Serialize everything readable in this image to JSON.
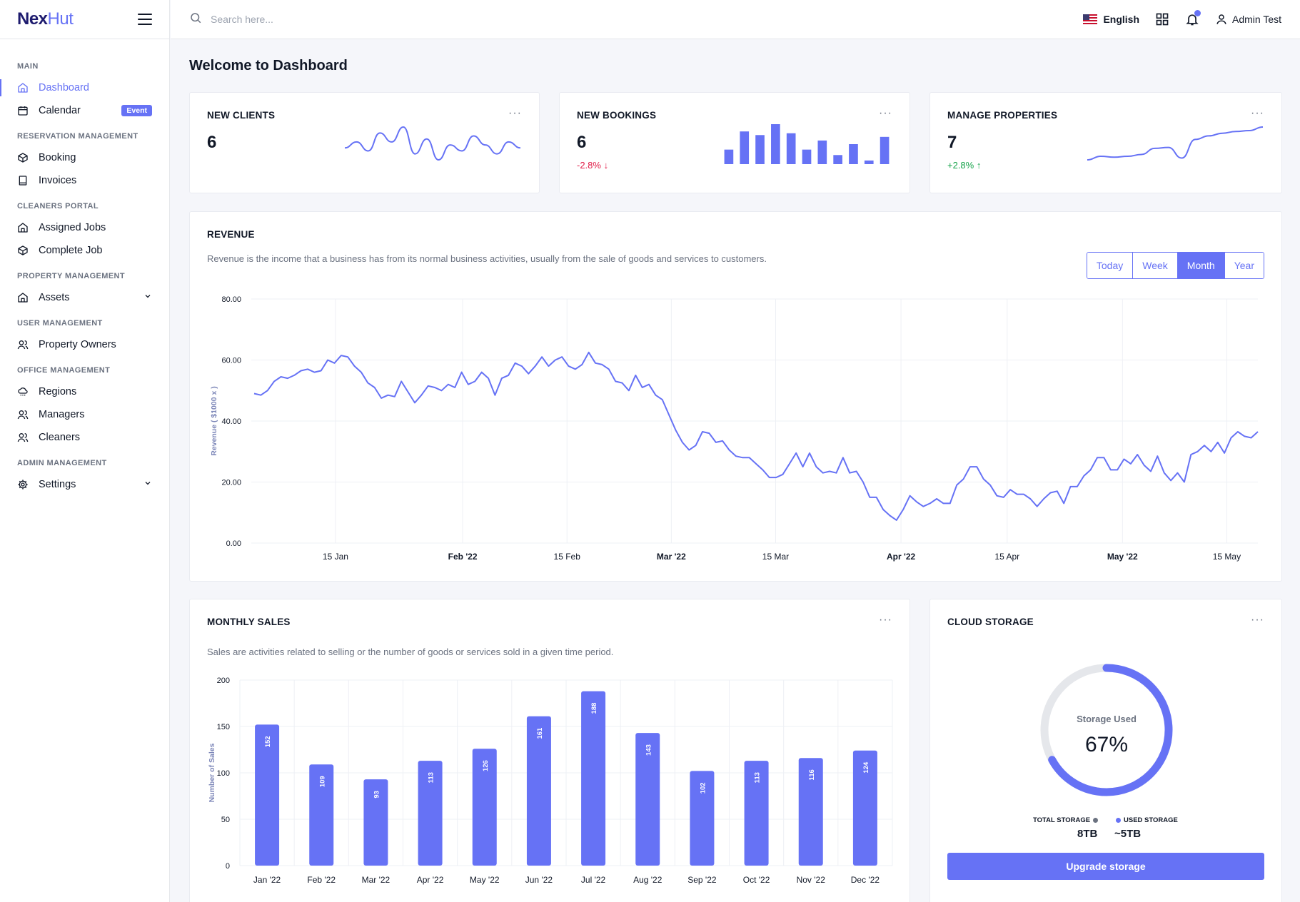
{
  "brand": {
    "part1": "Nex",
    "part2": "Hut"
  },
  "sidebar": {
    "groups": [
      {
        "title": "MAIN",
        "items": [
          {
            "label": "Dashboard",
            "icon": "home-icon",
            "active": true
          },
          {
            "label": "Calendar",
            "icon": "calendar-icon",
            "badge": "Event"
          }
        ]
      },
      {
        "title": "RESERVATION MANAGEMENT",
        "items": [
          {
            "label": "Booking",
            "icon": "box-icon"
          },
          {
            "label": "Invoices",
            "icon": "invoice-icon"
          }
        ]
      },
      {
        "title": "CLEANERS PORTAL",
        "items": [
          {
            "label": "Assigned Jobs",
            "icon": "home-icon"
          },
          {
            "label": "Complete Job",
            "icon": "box-icon"
          }
        ]
      },
      {
        "title": "PROPERTY MANAGEMENT",
        "items": [
          {
            "label": "Assets",
            "icon": "home-icon",
            "dropdown": true
          }
        ]
      },
      {
        "title": "USER MANAGEMENT",
        "items": [
          {
            "label": "Property Owners",
            "icon": "users-icon"
          }
        ]
      },
      {
        "title": "OFFICE MANAGEMENT",
        "items": [
          {
            "label": "Regions",
            "icon": "cloud-rain-icon"
          },
          {
            "label": "Managers",
            "icon": "users-icon"
          },
          {
            "label": "Cleaners",
            "icon": "users-icon"
          }
        ]
      },
      {
        "title": "ADMIN MANAGEMENT",
        "items": [
          {
            "label": "Settings",
            "icon": "gear-icon",
            "dropdown": true
          }
        ]
      }
    ]
  },
  "topbar": {
    "search_placeholder": "Search here...",
    "language": "English",
    "user": "Admin Test"
  },
  "page": {
    "title": "Welcome to Dashboard"
  },
  "stats": [
    {
      "title": "NEW CLIENTS",
      "value": "6",
      "change": ""
    },
    {
      "title": "NEW BOOKINGS",
      "value": "6",
      "change": "-2.8%",
      "direction": "down"
    },
    {
      "title": "MANAGE PROPERTIES",
      "value": "7",
      "change": "+2.8%",
      "direction": "up"
    }
  ],
  "revenue": {
    "title": "REVENUE",
    "description": "Revenue is the income that a business has from its normal business activities, usually from the sale of goods and services to customers.",
    "periods": [
      "Today",
      "Week",
      "Month",
      "Year"
    ],
    "active_period": "Month"
  },
  "monthly_sales": {
    "title": "MONTHLY SALES",
    "description": "Sales are activities related to selling or the number of goods or services sold in a given time period."
  },
  "cloud_storage": {
    "title": "CLOUD STORAGE",
    "center_label": "Storage Used",
    "percent": 67,
    "percent_text": "67%",
    "total_label": "TOTAL STORAGE",
    "total_value": "8TB",
    "used_label": "USED STORAGE",
    "used_value": "~5TB",
    "button": "Upgrade storage"
  },
  "colors": {
    "accent": "#6672f5",
    "negative": "#e11d48",
    "positive": "#16a34a"
  },
  "chart_data": [
    {
      "type": "line",
      "title": "",
      "xlabel": "",
      "ylabel": "Revenue ( $1000 x )",
      "ylim": [
        0,
        80
      ],
      "yticks": [
        "0.00",
        "20.00",
        "40.00",
        "60.00",
        "80.00"
      ],
      "xticks": [
        "15 Jan",
        "Feb '22",
        "15 Feb",
        "Mar '22",
        "15 Mar",
        "Apr '22",
        "15 Apr",
        "May '22",
        "15 May"
      ],
      "xticks_bold": [
        false,
        true,
        false,
        true,
        false,
        true,
        false,
        true,
        false
      ],
      "series": [
        {
          "values": [
            49,
            48.5,
            50,
            53,
            54.5,
            54,
            55,
            56.5,
            57,
            56,
            56.5,
            60,
            59,
            61.5,
            61,
            58,
            56,
            52.5,
            51,
            47.5,
            48.5,
            48,
            53,
            49.5,
            46,
            48.5,
            51.5,
            51,
            50,
            52,
            51,
            56,
            52,
            53,
            56,
            54,
            48.5,
            54,
            55,
            59,
            58,
            55.5,
            58,
            61,
            58,
            60,
            61,
            58,
            57,
            58.5,
            62.5,
            59,
            58.5,
            57,
            53,
            52.5,
            50,
            55,
            51,
            52,
            48.5,
            47,
            42,
            37,
            33,
            30.5,
            32,
            36.5,
            36,
            33,
            33.5,
            30.5,
            28.5,
            28,
            28,
            26,
            24,
            21.5,
            21.5,
            22.5,
            26,
            29.5,
            25,
            29.5,
            25,
            23,
            23.5,
            23,
            28,
            23,
            23.5,
            20,
            15,
            15,
            11,
            9,
            7.5,
            11,
            15.5,
            13.5,
            12,
            13,
            14.5,
            13,
            13,
            19,
            21,
            25,
            25,
            21,
            19,
            15.5,
            15,
            17.5,
            16,
            16,
            14.5,
            12,
            14.5,
            16.5,
            17,
            13,
            18.5,
            18.5,
            22,
            24,
            28,
            28,
            24,
            24,
            27.5,
            26,
            29,
            25.5,
            23.5,
            28.5,
            23,
            20.5,
            23,
            20,
            29,
            30,
            32,
            30,
            33,
            29.5,
            34.5,
            36.5,
            35,
            34.5,
            36.5
          ]
        }
      ]
    },
    {
      "type": "bar",
      "title": "",
      "xlabel": "",
      "ylabel": "Number of Sales",
      "ylim": [
        0,
        200
      ],
      "yticks": [
        "0",
        "50",
        "100",
        "150",
        "200"
      ],
      "categories": [
        "Jan '22",
        "Feb '22",
        "Mar '22",
        "Apr '22",
        "May '22",
        "Jun '22",
        "Jul '22",
        "Aug '22",
        "Sep '22",
        "Oct '22",
        "Nov '22",
        "Dec '22"
      ],
      "values": [
        152,
        109,
        93,
        113,
        126,
        161,
        188,
        143,
        102,
        113,
        116,
        124
      ]
    },
    {
      "type": "line",
      "name": "new-clients-sparkline",
      "values": [
        5.5,
        6.5,
        5,
        8,
        6.5,
        9,
        4.5,
        7,
        3.5,
        6,
        5,
        7.5,
        6,
        4.5,
        6.5,
        5.5
      ]
    },
    {
      "type": "bar",
      "name": "new-bookings-sparkline",
      "values": [
        4,
        9,
        8,
        11,
        8.5,
        4,
        6.5,
        2.5,
        5.5,
        1,
        7.5
      ]
    },
    {
      "type": "line",
      "name": "manage-properties-sparkline",
      "values": [
        2,
        2.8,
        2.6,
        2.8,
        3.2,
        4.6,
        4.8,
        2.4,
        6.6,
        7.4,
        8,
        8.4,
        8.6,
        9.4
      ]
    }
  ]
}
